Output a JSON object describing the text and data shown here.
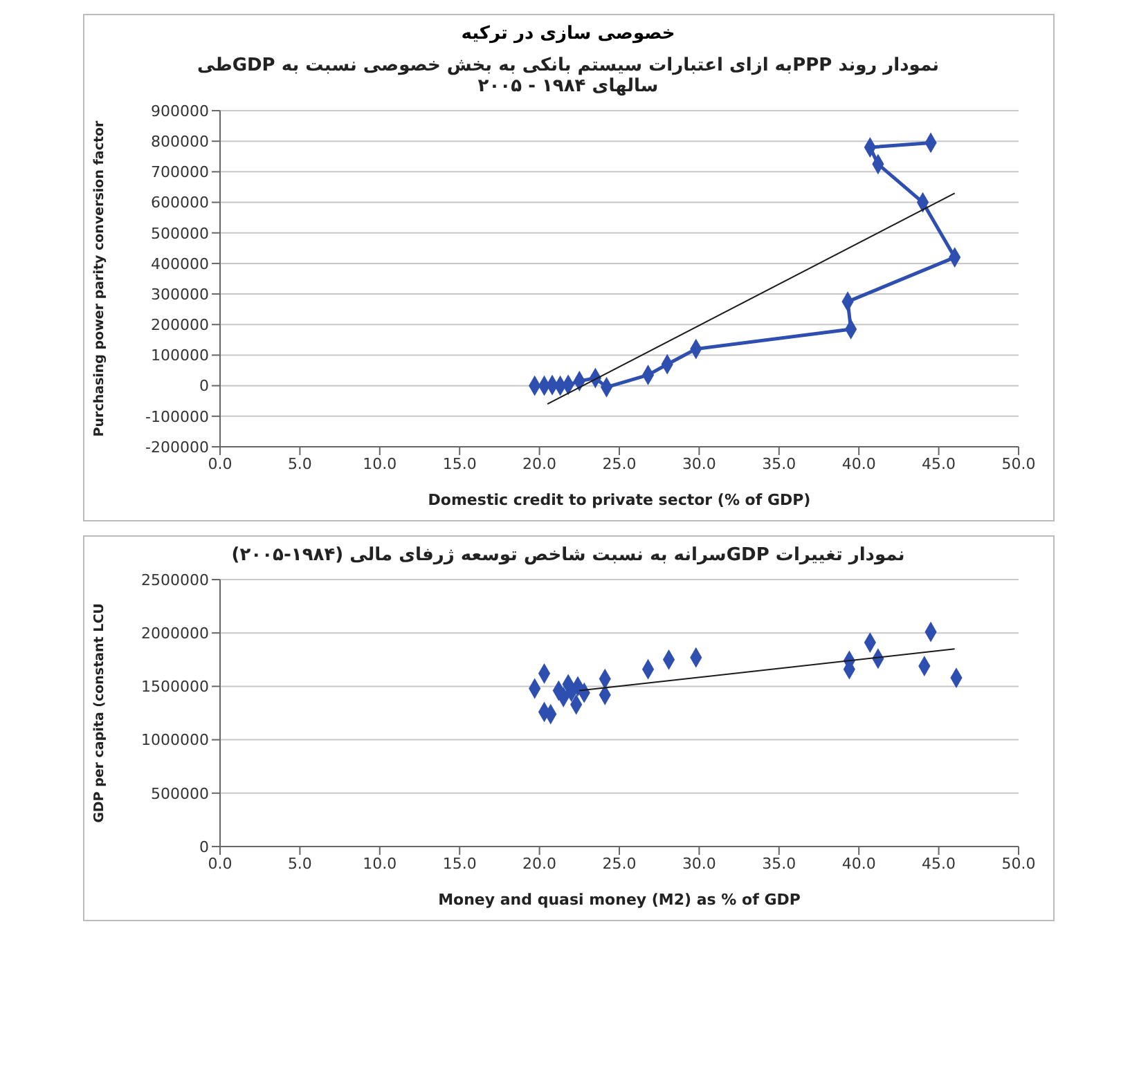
{
  "chart_data": [
    {
      "type": "line",
      "title": "نمودار روند PPPبه ازای اعتبارات سیستم بانکی به بخش خصوصی نسبت به GDPطی سالهای ۱۹۸۴ - ۲۰۰۵",
      "annotations": [
        "خصوصی سازی در ترکیه"
      ],
      "xlabel": "Domestic credit to private sector (% of GDP)",
      "ylabel": "Purchasing power parity conversion factor",
      "xlim": [
        0,
        50
      ],
      "ylim": [
        -200000,
        900000
      ],
      "xticks": [
        {
          "value": 0,
          "label": "0.0"
        },
        {
          "value": 5,
          "label": "5.0"
        },
        {
          "value": 10,
          "label": "10.0"
        },
        {
          "value": 15,
          "label": "15.0"
        },
        {
          "value": 20,
          "label": "20.0"
        },
        {
          "value": 25,
          "label": "25.0"
        },
        {
          "value": 30,
          "label": "30.0"
        },
        {
          "value": 35,
          "label": "35.0"
        },
        {
          "value": 40,
          "label": "40.0"
        },
        {
          "value": 45,
          "label": "45.0"
        },
        {
          "value": 50,
          "label": "50.0"
        }
      ],
      "yticks": [
        -200000,
        -100000,
        0,
        100000,
        200000,
        300000,
        400000,
        500000,
        600000,
        700000,
        800000,
        900000
      ],
      "grid": "y",
      "series": [
        {
          "type": "line",
          "color": "#2f4fb0",
          "marker": "diamond",
          "x": [
            19.7,
            20.3,
            20.8,
            21.3,
            21.8,
            22.5,
            23.5,
            24.2,
            26.8,
            28.0,
            29.8,
            39.5,
            39.3,
            46.0,
            44.0,
            41.2,
            40.7,
            44.5
          ],
          "values": [
            0,
            0,
            2000,
            0,
            3000,
            15000,
            25000,
            -5000,
            35000,
            70000,
            120000,
            185000,
            275000,
            420000,
            600000,
            725000,
            780000,
            795000
          ]
        },
        {
          "type": "line",
          "color": "#1a1a1a",
          "marker": "none",
          "x": [
            20.5,
            46.0
          ],
          "values": [
            -60000,
            630000
          ]
        }
      ]
    },
    {
      "type": "scatter",
      "title": "نمودار تغییرات GDPسرانه به نسبت شاخص توسعه ژرفای مالی (۱۹۸۴-۲۰۰۵)",
      "xlabel": "Money and quasi money (M2) as % of GDP",
      "ylabel": "GDP per capita (constant LCU",
      "xlim": [
        0,
        50
      ],
      "ylim": [
        0,
        2500000
      ],
      "xticks": [
        {
          "value": 0,
          "label": "0.0"
        },
        {
          "value": 5,
          "label": "5.0"
        },
        {
          "value": 10,
          "label": "10.0"
        },
        {
          "value": 15,
          "label": "15.0"
        },
        {
          "value": 20,
          "label": "20.0"
        },
        {
          "value": 25,
          "label": "25.0"
        },
        {
          "value": 30,
          "label": "30.0"
        },
        {
          "value": 35,
          "label": "35.0"
        },
        {
          "value": 40,
          "label": "40.0"
        },
        {
          "value": 45,
          "label": "45.0"
        },
        {
          "value": 50,
          "label": "50.0"
        }
      ],
      "yticks": [
        0,
        500000,
        1000000,
        1500000,
        2000000,
        2500000
      ],
      "grid": "y",
      "series": [
        {
          "type": "scatter",
          "color": "#2f4fb0",
          "marker": "diamond",
          "x": [
            19.7,
            20.3,
            20.3,
            20.7,
            21.2,
            21.5,
            21.8,
            22.0,
            22.3,
            22.4,
            22.8,
            24.1,
            24.1,
            26.8,
            28.1,
            29.8,
            39.4,
            39.4,
            40.7,
            41.2,
            44.1,
            44.5,
            46.1
          ],
          "values": [
            1480000,
            1620000,
            1260000,
            1240000,
            1460000,
            1400000,
            1520000,
            1450000,
            1330000,
            1500000,
            1440000,
            1570000,
            1420000,
            1660000,
            1750000,
            1770000,
            1740000,
            1660000,
            1910000,
            1760000,
            1690000,
            2010000,
            1580000
          ]
        },
        {
          "type": "line",
          "color": "#1a1a1a",
          "marker": "none",
          "x": [
            22.5,
            46.0
          ],
          "values": [
            1460000,
            1850000
          ]
        }
      ]
    }
  ]
}
